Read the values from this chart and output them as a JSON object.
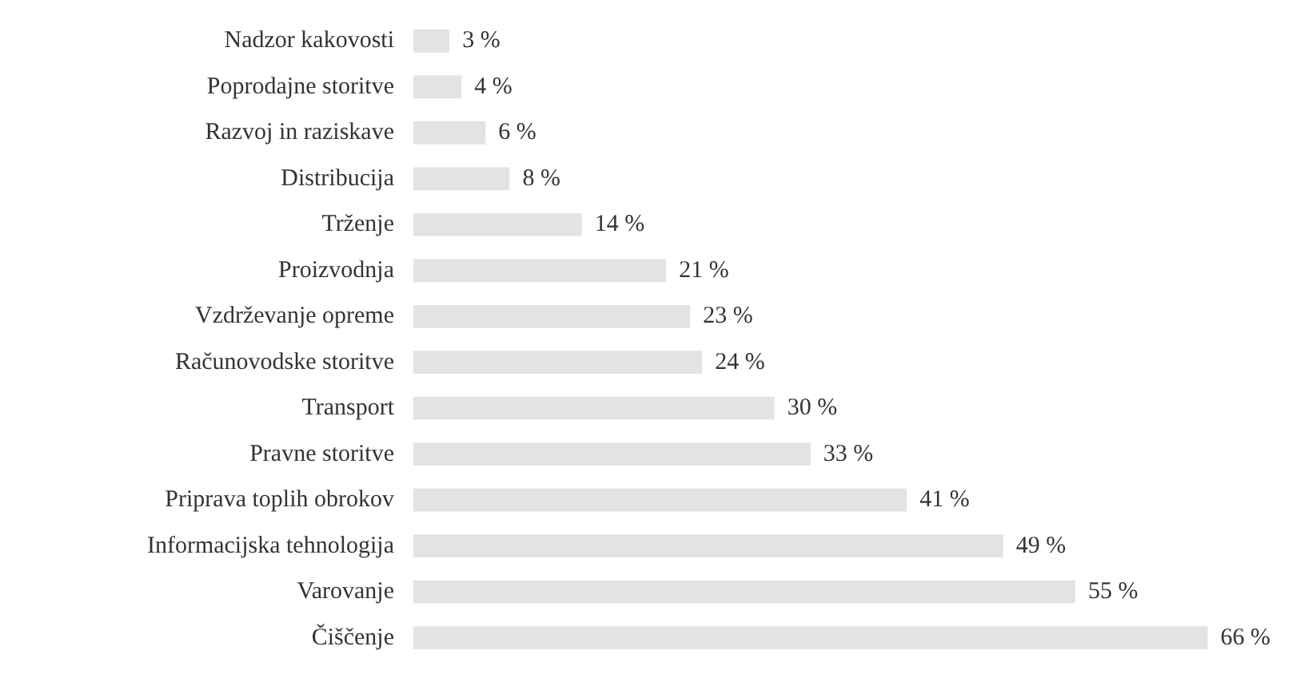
{
  "chart_data": {
    "type": "bar",
    "orientation": "horizontal",
    "categories": [
      "Nadzor kakovosti",
      "Poprodajne storitve",
      "Razvoj in raziskave",
      "Distribucija",
      "Trženje",
      "Proizvodnja",
      "Vzdrževanje opreme",
      "Računovodske storitve",
      "Transport",
      "Pravne storitve",
      "Priprava toplih obrokov",
      "Informacijska tehnologija",
      "Varovanje",
      "Čiščenje"
    ],
    "values": [
      3,
      4,
      6,
      8,
      14,
      21,
      23,
      24,
      30,
      33,
      41,
      49,
      55,
      66
    ],
    "value_labels": [
      "3 %",
      "4 %",
      "6 %",
      "8 %",
      "14 %",
      "21 %",
      "23 %",
      "24 %",
      "30 %",
      "33 %",
      "41 %",
      "49 %",
      "55 %",
      "66 %"
    ],
    "color": "#e3e3e3"
  }
}
